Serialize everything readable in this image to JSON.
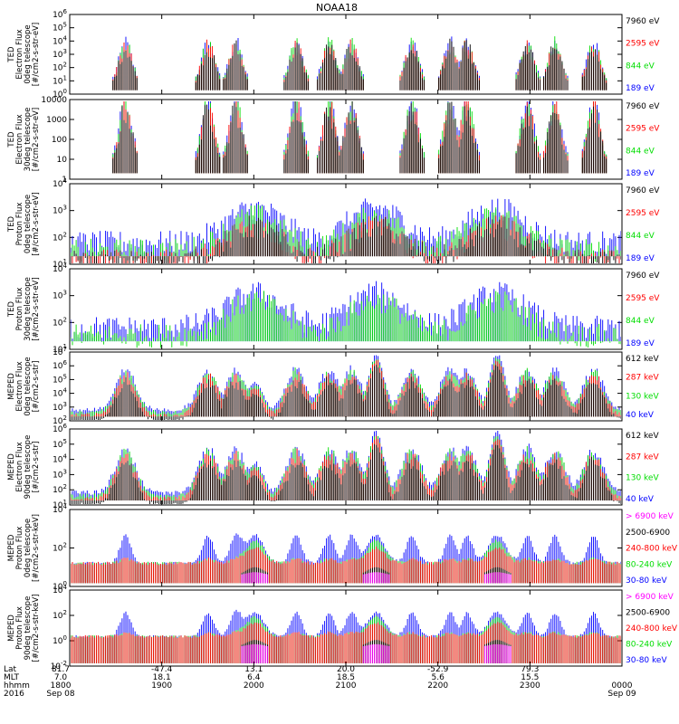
{
  "title": "NOAA18",
  "colors": {
    "black": "#000000",
    "red": "#ff0000",
    "green": "#00dd00",
    "blue": "#0000ff",
    "magenta": "#ff00ff"
  },
  "footer": {
    "row_labels": [
      "Lat",
      "MLT",
      "hhmm",
      "2016"
    ],
    "ticks": [
      {
        "lat": "81.7",
        "mlt": "7.0",
        "hhmm": "1800",
        "date": "Sep 08"
      },
      {
        "lat": "-47.4",
        "mlt": "18.1",
        "hhmm": "1900",
        "date": ""
      },
      {
        "lat": "13.1",
        "mlt": "6.4",
        "hhmm": "2000",
        "date": ""
      },
      {
        "lat": "20.0",
        "mlt": "18.5",
        "hhmm": "2100",
        "date": ""
      },
      {
        "lat": "-52.9",
        "mlt": "5.6",
        "hhmm": "2200",
        "date": ""
      },
      {
        "lat": "79.3",
        "mlt": "15.5",
        "hhmm": "2300",
        "date": ""
      },
      {
        "lat": "",
        "mlt": "",
        "hhmm": "0000",
        "date": "Sep 09"
      }
    ]
  },
  "chart_data": [
    {
      "type": "line",
      "ylabel": [
        "TED",
        "Electron Flux",
        "0deg telescope",
        "[#/cm2-s-str-eV]"
      ],
      "yscale": "log",
      "ylim_exp": [
        0,
        6
      ],
      "ytick_labels": [
        "10^0",
        "10^1",
        "10^2",
        "10^3",
        "10^4",
        "10^5",
        "10^6"
      ],
      "legend": [
        {
          "name": "7960 eV",
          "color": "#000000"
        },
        {
          "name": "2595 eV",
          "color": "#ff0000"
        },
        {
          "name": "844 eV",
          "color": "#00dd00"
        },
        {
          "name": "189 eV",
          "color": "#0000ff"
        }
      ]
    },
    {
      "type": "line",
      "ylabel": [
        "TED",
        "Electron Flux",
        "30deg telescope",
        "[#/cm2-s-str-eV]"
      ],
      "yscale": "log",
      "ylim_exp": [
        0,
        4
      ],
      "ytick_labels": [
        "1",
        "10",
        "100",
        "1000",
        "10000"
      ],
      "legend": [
        {
          "name": "7960 eV",
          "color": "#000000"
        },
        {
          "name": "2595 eV",
          "color": "#ff0000"
        },
        {
          "name": "844 eV",
          "color": "#00dd00"
        },
        {
          "name": "189 eV",
          "color": "#0000ff"
        }
      ]
    },
    {
      "type": "line",
      "ylabel": [
        "TED",
        "Proton Flux",
        "0deg telescope",
        "[#/cm2-s-str-eV]"
      ],
      "yscale": "log",
      "ylim_exp": [
        1,
        4
      ],
      "ytick_labels": [
        "10^1",
        "10^2",
        "10^3",
        "10^4"
      ],
      "legend": [
        {
          "name": "7960 eV",
          "color": "#000000"
        },
        {
          "name": "2595 eV",
          "color": "#ff0000"
        },
        {
          "name": "844 eV",
          "color": "#00dd00"
        },
        {
          "name": "189 eV",
          "color": "#0000ff"
        }
      ]
    },
    {
      "type": "line",
      "ylabel": [
        "TED",
        "Proton Flux",
        "30deg telescope",
        "[#/cm2-s-str-eV]"
      ],
      "yscale": "log",
      "ylim_exp": [
        1,
        4
      ],
      "ytick_labels": [
        "10^1",
        "10^2",
        "10^3",
        "10^4"
      ],
      "legend": [
        {
          "name": "7960 eV",
          "color": "#000000"
        },
        {
          "name": "2595 eV",
          "color": "#ff0000"
        },
        {
          "name": "844 eV",
          "color": "#00dd00"
        },
        {
          "name": "189 eV",
          "color": "#0000ff"
        }
      ]
    },
    {
      "type": "line",
      "ylabel": [
        "MEPED",
        "Electron Flux",
        "0deg telescope",
        "[#/cm2-s-str]"
      ],
      "yscale": "log",
      "ylim_exp": [
        2,
        7
      ],
      "ytick_labels": [
        "10^2",
        "10^3",
        "10^4",
        "10^5",
        "10^6",
        "10^7"
      ],
      "legend": [
        {
          "name": "612 keV",
          "color": "#000000"
        },
        {
          "name": "287 keV",
          "color": "#ff0000"
        },
        {
          "name": "130 keV",
          "color": "#00dd00"
        },
        {
          "name": "40 keV",
          "color": "#0000ff"
        }
      ]
    },
    {
      "type": "line",
      "ylabel": [
        "MEPED",
        "Electron Flux",
        "90deg telescope",
        "[#/cm2-s-str]"
      ],
      "yscale": "log",
      "ylim_exp": [
        1,
        6
      ],
      "ytick_labels": [
        "10^1",
        "10^2",
        "10^3",
        "10^4",
        "10^5",
        "10^6"
      ],
      "legend": [
        {
          "name": "612 keV",
          "color": "#000000"
        },
        {
          "name": "287 keV",
          "color": "#ff0000"
        },
        {
          "name": "130 keV",
          "color": "#00dd00"
        },
        {
          "name": "40 keV",
          "color": "#0000ff"
        }
      ]
    },
    {
      "type": "line",
      "ylabel": [
        "MEPED",
        "Proton Flux",
        "0deg telescope",
        "[#/cm2-s-str-keV]"
      ],
      "yscale": "log",
      "ylim_exp": [
        -2,
        5
      ],
      "ytick_labels": [
        "10^0",
        "10^2",
        "10^4"
      ],
      "legend": [
        {
          "name": "> 6900 keV",
          "color": "#ff00ff"
        },
        {
          "name": "2500-6900",
          "color": "#000000"
        },
        {
          "name": "240-800 keV",
          "color": "#ff0000"
        },
        {
          "name": "80-240 keV",
          "color": "#00dd00"
        },
        {
          "name": "30-80 keV",
          "color": "#0000ff"
        }
      ]
    },
    {
      "type": "line",
      "ylabel": [
        "MEPED",
        "Proton Flux",
        "90deg telescope",
        "[#/cm2-s-str-keV]"
      ],
      "yscale": "log",
      "ylim_exp": [
        -3,
        5
      ],
      "ytick_labels": [
        "10^-2",
        "10^0",
        "10^2",
        "10^4"
      ],
      "legend": [
        {
          "name": "> 6900 keV",
          "color": "#ff00ff"
        },
        {
          "name": "2500-6900",
          "color": "#000000"
        },
        {
          "name": "240-800 keV",
          "color": "#ff0000"
        },
        {
          "name": "80-240 keV",
          "color": "#00dd00"
        },
        {
          "name": "30-80 keV",
          "color": "#0000ff"
        }
      ]
    }
  ]
}
